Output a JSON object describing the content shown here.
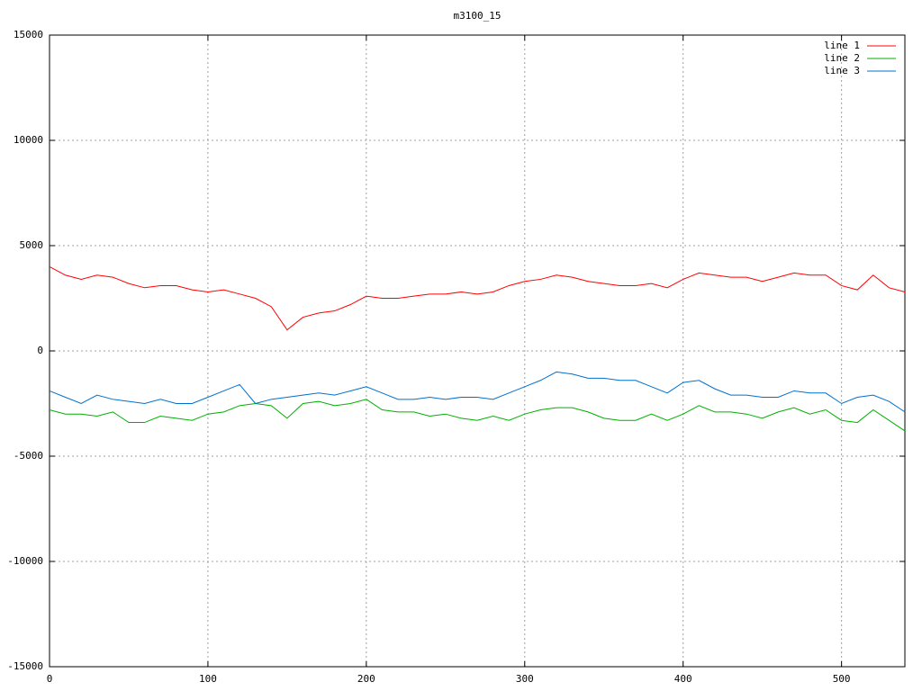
{
  "chart_data": {
    "type": "line",
    "title": "m3100_15",
    "x": [
      0,
      10,
      20,
      30,
      40,
      50,
      60,
      70,
      80,
      90,
      100,
      110,
      120,
      130,
      140,
      150,
      160,
      170,
      180,
      190,
      200,
      210,
      220,
      230,
      240,
      250,
      260,
      270,
      280,
      290,
      300,
      310,
      320,
      330,
      340,
      350,
      360,
      370,
      380,
      390,
      400,
      410,
      420,
      430,
      440,
      450,
      460,
      470,
      480,
      490,
      500,
      510,
      520,
      530,
      540
    ],
    "series": [
      {
        "name": "line 1",
        "color": "#ff0000",
        "values": [
          4000,
          3600,
          3400,
          3600,
          3500,
          3200,
          3000,
          3100,
          3100,
          2900,
          2800,
          2900,
          2700,
          2500,
          2100,
          1000,
          1600,
          1800,
          1900,
          2200,
          2600,
          2500,
          2500,
          2600,
          2700,
          2700,
          2800,
          2700,
          2800,
          3100,
          3300,
          3400,
          3600,
          3500,
          3300,
          3200,
          3100,
          3100,
          3200,
          3000,
          3400,
          3700,
          3600,
          3500,
          3500,
          3300,
          3500,
          3700,
          3600,
          3600,
          3100,
          2900,
          3600,
          3000,
          2800
        ]
      },
      {
        "name": "line 2",
        "color": "#00b000",
        "values": [
          -2800,
          -3000,
          -3000,
          -3100,
          -2900,
          -3400,
          -3400,
          -3100,
          -3200,
          -3300,
          -3000,
          -2900,
          -2600,
          -2500,
          -2600,
          -3200,
          -2500,
          -2400,
          -2600,
          -2500,
          -2300,
          -2800,
          -2900,
          -2900,
          -3100,
          -3000,
          -3200,
          -3300,
          -3100,
          -3300,
          -3000,
          -2800,
          -2700,
          -2700,
          -2900,
          -3200,
          -3300,
          -3300,
          -3000,
          -3300,
          -3000,
          -2600,
          -2900,
          -2900,
          -3000,
          -3200,
          -2900,
          -2700,
          -3000,
          -2800,
          -3300,
          -3400,
          -2800,
          -3300,
          -3800
        ]
      },
      {
        "name": "line 3",
        "color": "#0070d0",
        "values": [
          -1900,
          -2200,
          -2500,
          -2100,
          -2300,
          -2400,
          -2500,
          -2300,
          -2500,
          -2500,
          -2200,
          -1900,
          -1600,
          -2500,
          -2300,
          -2200,
          -2100,
          -2000,
          -2100,
          -1900,
          -1700,
          -2000,
          -2300,
          -2300,
          -2200,
          -2300,
          -2200,
          -2200,
          -2300,
          -2000,
          -1700,
          -1400,
          -1000,
          -1100,
          -1300,
          -1300,
          -1400,
          -1400,
          -1700,
          -2000,
          -1500,
          -1400,
          -1800,
          -2100,
          -2100,
          -2200,
          -2200,
          -1900,
          -2000,
          -2000,
          -2500,
          -2200,
          -2100,
          -2400,
          -2900
        ]
      }
    ],
    "xlim": [
      0,
      540
    ],
    "xticks": [
      0,
      100,
      200,
      300,
      400,
      500
    ],
    "ylim": [
      -15000,
      15000
    ],
    "yticks": [
      -15000,
      -10000,
      -5000,
      0,
      5000,
      10000,
      15000
    ],
    "grid": true,
    "legend": "top-right"
  }
}
